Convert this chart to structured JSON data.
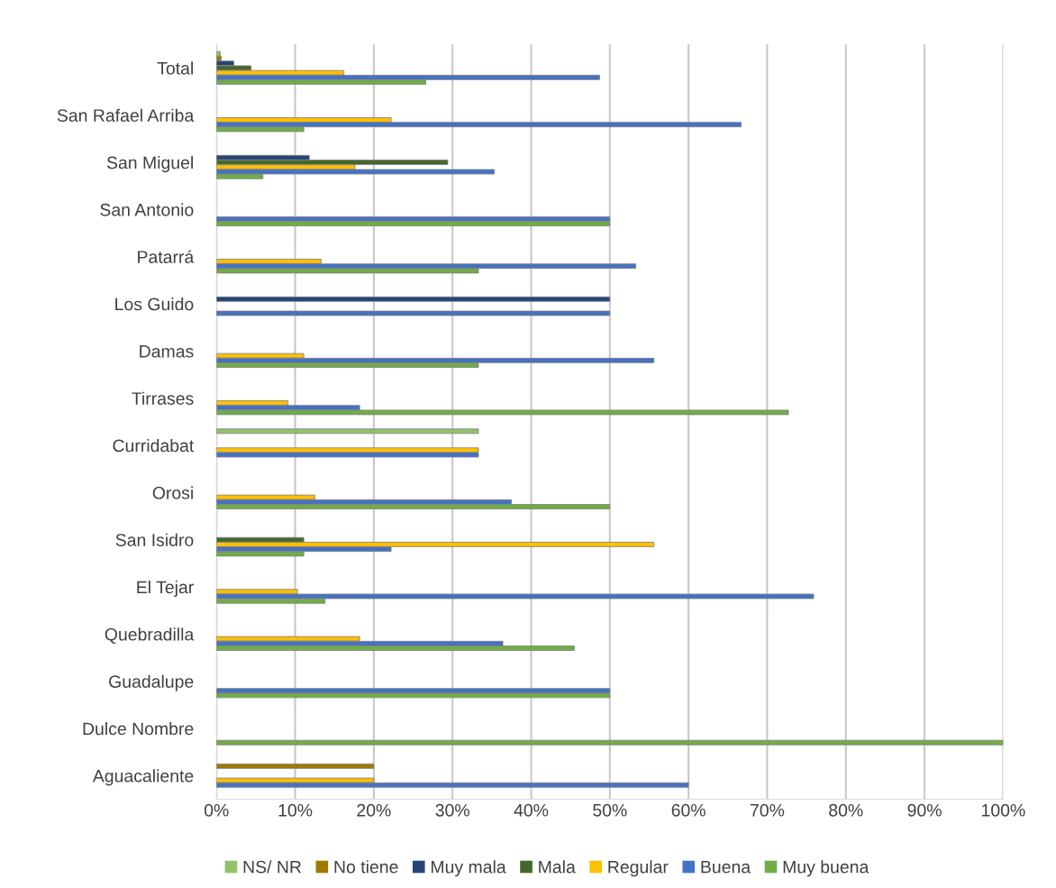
{
  "chart_data": {
    "type": "bar",
    "orientation": "horizontal",
    "categories": [
      "Total",
      "San Rafael Arriba",
      "San Miguel",
      "San Antonio",
      "Patarrá",
      "Los Guido",
      "Damas",
      "Tirrases",
      "Curridabat",
      "Orosi",
      "San Isidro",
      "El Tejar",
      "Quebradilla",
      "Guadalupe",
      "Dulce Nombre",
      "Aguacaliente"
    ],
    "series": [
      {
        "name": "NS/ NR",
        "color": "#8fc46a",
        "values": [
          0.5,
          null,
          null,
          null,
          null,
          null,
          null,
          null,
          33.3,
          null,
          null,
          null,
          null,
          null,
          null,
          null
        ]
      },
      {
        "name": "No tiene",
        "color": "#a07a00",
        "values": [
          0.6,
          null,
          null,
          null,
          null,
          null,
          null,
          null,
          null,
          null,
          null,
          null,
          null,
          null,
          null,
          20
        ]
      },
      {
        "name": "Muy mala",
        "color": "#264478",
        "values": [
          2.2,
          null,
          11.8,
          null,
          null,
          50,
          null,
          null,
          null,
          null,
          null,
          null,
          null,
          null,
          null,
          null
        ]
      },
      {
        "name": "Mala",
        "color": "#43682b",
        "values": [
          4.4,
          null,
          29.4,
          null,
          null,
          null,
          null,
          null,
          null,
          null,
          11.1,
          null,
          null,
          null,
          null,
          null
        ]
      },
      {
        "name": "Regular",
        "color": "#ffc000",
        "values": [
          16.2,
          22.2,
          17.6,
          null,
          13.3,
          null,
          11.1,
          9.1,
          33.3,
          12.5,
          55.6,
          10.3,
          18.2,
          null,
          null,
          20
        ]
      },
      {
        "name": "Buena",
        "color": "#4472c4",
        "values": [
          48.7,
          66.7,
          35.3,
          50,
          53.3,
          50,
          55.6,
          18.2,
          33.3,
          37.5,
          22.2,
          75.9,
          36.4,
          50,
          null,
          60
        ]
      },
      {
        "name": "Muy buena",
        "color": "#70ad47",
        "values": [
          26.6,
          11.1,
          5.9,
          50,
          33.3,
          null,
          33.3,
          72.7,
          null,
          50,
          11.1,
          13.8,
          45.5,
          50,
          100,
          null
        ]
      }
    ],
    "xlim": [
      0,
      100
    ],
    "xticks": [
      {
        "value": 0,
        "label": "0%"
      },
      {
        "value": 10,
        "label": "10%"
      },
      {
        "value": 20,
        "label": "20%"
      },
      {
        "value": 30,
        "label": "30%"
      },
      {
        "value": 40,
        "label": "40%"
      },
      {
        "value": 50,
        "label": "50%"
      },
      {
        "value": 60,
        "label": "60%"
      },
      {
        "value": 70,
        "label": "70%"
      },
      {
        "value": 80,
        "label": "80%"
      },
      {
        "value": 90,
        "label": "90%"
      },
      {
        "value": 100,
        "label": "100%"
      }
    ],
    "grid": "x",
    "legend": "bottom"
  }
}
